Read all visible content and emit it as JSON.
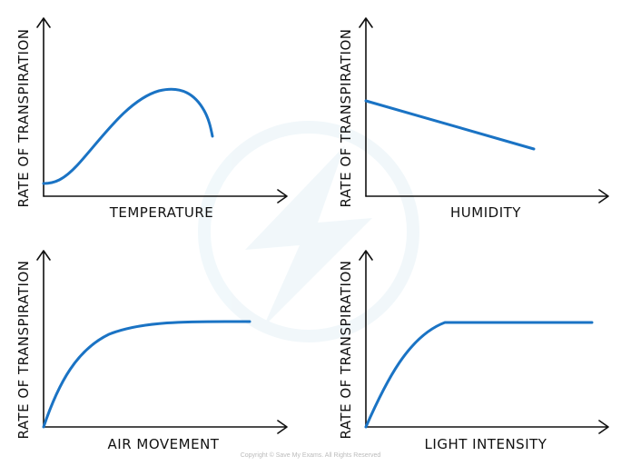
{
  "colors": {
    "curve": "#1a73c4",
    "axis": "#111111",
    "watermark": "#e8f3f8"
  },
  "watermark": {
    "icon": "lightning-bolt-logo"
  },
  "graphs": [
    {
      "ylabel": "RATE OF TRANSPIRATION",
      "xlabel": "TEMPERATURE",
      "trend": "rises then peaks then falls"
    },
    {
      "ylabel": "RATE OF TRANSPIRATION",
      "xlabel": "HUMIDITY",
      "trend": "linear decrease"
    },
    {
      "ylabel": "RATE OF TRANSPIRATION",
      "xlabel": "AIR MOVEMENT",
      "trend": "rises then plateaus"
    },
    {
      "ylabel": "RATE OF TRANSPIRATION",
      "xlabel": "LIGHT INTENSITY",
      "trend": "rises then plateaus"
    }
  ],
  "copyright": "Copyright © Save My Exams. All Rights Reserved"
}
